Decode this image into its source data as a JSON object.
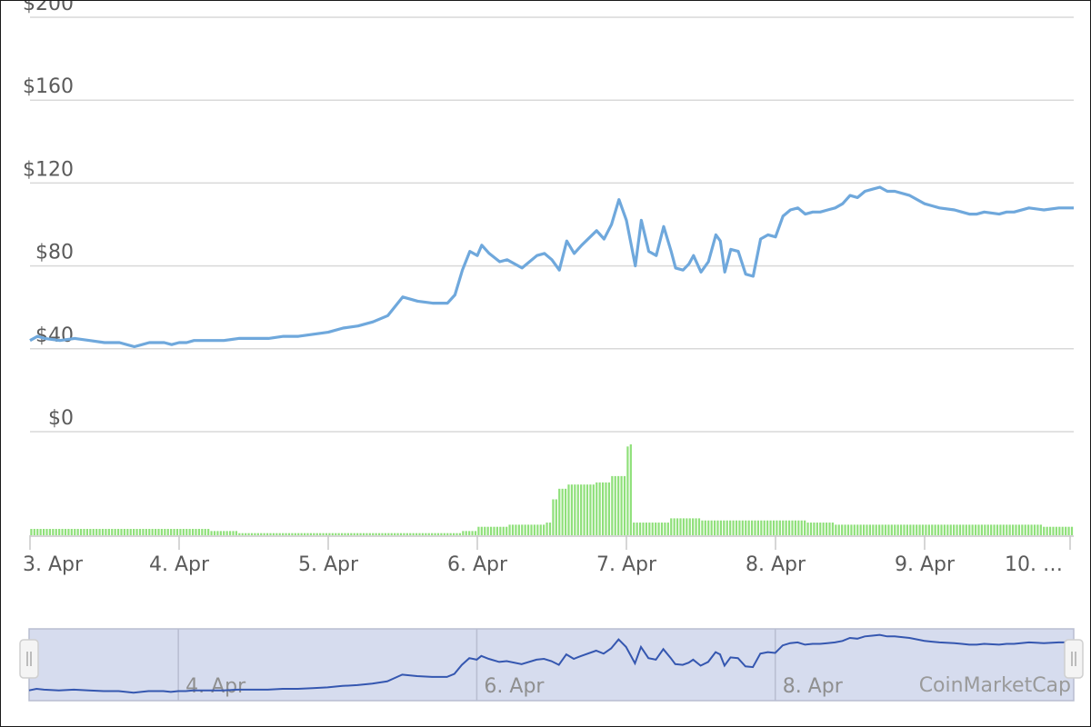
{
  "credit": "CoinMarketCap",
  "colors": {
    "price_line": "#6fa8dc",
    "volume_bar": "#8fe07a",
    "grid": "#d9d9d9",
    "navigator_fill": "#d6dcee",
    "navigator_line": "#3557b0"
  },
  "chart_data": {
    "type": "line",
    "title": "",
    "xlabel": "",
    "ylabel": "",
    "y_ticks": [
      "$200",
      "$160",
      "$120",
      "$80",
      "$40",
      "$0"
    ],
    "ylim": [
      0,
      200
    ],
    "x_ticks": [
      "3. Apr",
      "4. Apr",
      "5. Apr",
      "6. Apr",
      "7. Apr",
      "8. Apr",
      "9. Apr",
      "10. …"
    ],
    "navigator_ticks": [
      "4. Apr",
      "6. Apr",
      "8. Apr"
    ],
    "x_range_days": [
      3.0,
      10.0
    ],
    "grid": true,
    "legend": "none",
    "price_series": {
      "x": [
        3.0,
        3.05,
        3.1,
        3.2,
        3.3,
        3.4,
        3.5,
        3.6,
        3.7,
        3.8,
        3.9,
        3.95,
        4.0,
        4.05,
        4.1,
        4.2,
        4.3,
        4.4,
        4.5,
        4.6,
        4.7,
        4.8,
        4.9,
        5.0,
        5.1,
        5.2,
        5.3,
        5.4,
        5.5,
        5.6,
        5.7,
        5.8,
        5.85,
        5.9,
        5.95,
        6.0,
        6.03,
        6.08,
        6.15,
        6.2,
        6.3,
        6.4,
        6.45,
        6.5,
        6.55,
        6.6,
        6.65,
        6.7,
        6.8,
        6.85,
        6.9,
        6.95,
        7.0,
        7.03,
        7.06,
        7.1,
        7.15,
        7.2,
        7.25,
        7.3,
        7.33,
        7.38,
        7.42,
        7.45,
        7.5,
        7.55,
        7.6,
        7.63,
        7.66,
        7.7,
        7.75,
        7.8,
        7.85,
        7.9,
        7.95,
        8.0,
        8.05,
        8.1,
        8.15,
        8.2,
        8.25,
        8.3,
        8.35,
        8.4,
        8.45,
        8.5,
        8.55,
        8.6,
        8.65,
        8.7,
        8.75,
        8.8,
        8.9,
        9.0,
        9.05,
        9.1,
        9.2,
        9.25,
        9.3,
        9.35,
        9.4,
        9.5,
        9.55,
        9.6,
        9.7,
        9.8,
        9.9,
        10.0
      ],
      "y": [
        44,
        46,
        45,
        44,
        45,
        44,
        43,
        43,
        41,
        43,
        43,
        42,
        43,
        43,
        44,
        44,
        44,
        45,
        45,
        45,
        46,
        46,
        47,
        48,
        50,
        51,
        53,
        56,
        65,
        63,
        62,
        62,
        66,
        78,
        87,
        85,
        90,
        86,
        82,
        83,
        79,
        85,
        86,
        83,
        78,
        92,
        86,
        90,
        97,
        93,
        100,
        112,
        102,
        91,
        80,
        102,
        87,
        85,
        99,
        87,
        79,
        78,
        81,
        85,
        77,
        82,
        95,
        92,
        77,
        88,
        87,
        76,
        75,
        93,
        95,
        94,
        104,
        107,
        108,
        105,
        106,
        106,
        107,
        108,
        110,
        114,
        113,
        116,
        117,
        118,
        116,
        116,
        114,
        110,
        109,
        108,
        107,
        106,
        105,
        105,
        106,
        105,
        106,
        106,
        108,
        107,
        108,
        108
      ]
    },
    "volume_series": {
      "x": [
        3.0,
        3.5,
        4.0,
        4.2,
        4.4,
        5.0,
        5.6,
        5.9,
        6.0,
        6.2,
        6.4,
        6.45,
        6.5,
        6.55,
        6.6,
        6.7,
        6.8,
        6.9,
        7.0,
        7.02,
        7.05,
        7.1,
        7.3,
        7.5,
        7.8,
        8.0,
        8.2,
        8.4,
        8.6,
        9.0,
        9.5,
        9.8,
        10.0
      ],
      "values": [
        3,
        3,
        3,
        2,
        1,
        1,
        1,
        2,
        4,
        5,
        5,
        6,
        17,
        22,
        24,
        24,
        25,
        28,
        42,
        43,
        6,
        6,
        8,
        7,
        7,
        7,
        6,
        5,
        5,
        5,
        5,
        4,
        5
      ]
    }
  }
}
